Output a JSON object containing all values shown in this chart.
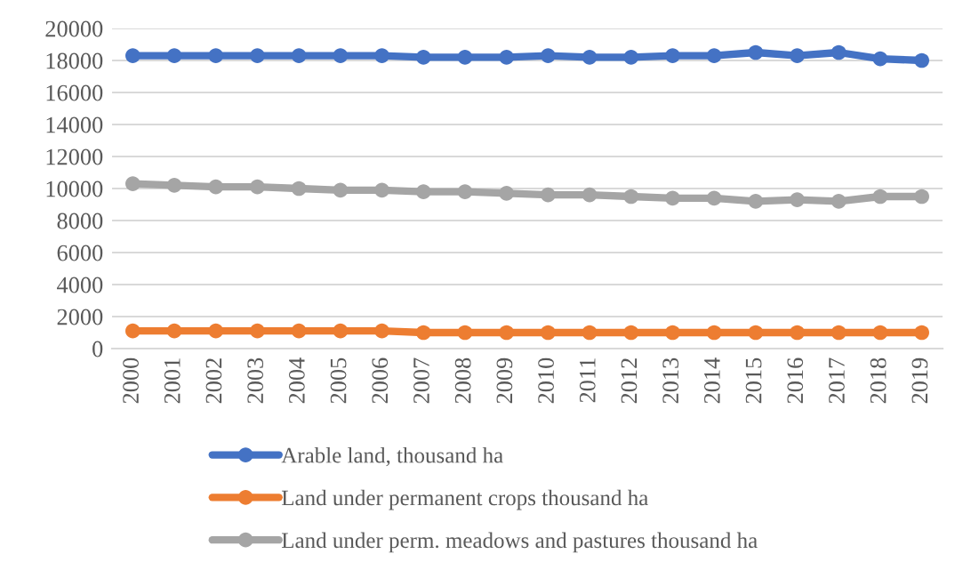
{
  "chart_data": {
    "type": "line",
    "categories": [
      "2000",
      "2001",
      "2002",
      "2003",
      "2004",
      "2005",
      "2006",
      "2007",
      "2008",
      "2009",
      "2010",
      "2011",
      "2012",
      "2013",
      "2014",
      "2015",
      "2016",
      "2017",
      "2018",
      "2019"
    ],
    "series": [
      {
        "name": "Arable land, thousand ha",
        "color": "#4472c4",
        "values": [
          18300,
          18300,
          18300,
          18300,
          18300,
          18300,
          18300,
          18200,
          18200,
          18200,
          18300,
          18200,
          18200,
          18300,
          18300,
          18500,
          18300,
          18500,
          18100,
          18000
        ]
      },
      {
        "name": "Land under permanent crops thousand ha",
        "color": "#ed7d31",
        "values": [
          1100,
          1100,
          1100,
          1100,
          1100,
          1100,
          1100,
          1000,
          1000,
          1000,
          1000,
          1000,
          1000,
          1000,
          1000,
          1000,
          1000,
          1000,
          1000,
          1000
        ]
      },
      {
        "name": "Land under perm. meadows and pastures thousand ha",
        "color": "#a5a5a5",
        "values": [
          10300,
          10200,
          10100,
          10100,
          10000,
          9900,
          9900,
          9800,
          9800,
          9700,
          9600,
          9600,
          9500,
          9400,
          9400,
          9200,
          9300,
          9200,
          9500,
          9500
        ]
      }
    ],
    "ylim": [
      0,
      20000
    ],
    "yticks": [
      0,
      2000,
      4000,
      6000,
      8000,
      10000,
      12000,
      14000,
      16000,
      18000,
      20000
    ],
    "grid": "y",
    "legend": "bottom",
    "marker": "circle",
    "line_style": "solid"
  }
}
